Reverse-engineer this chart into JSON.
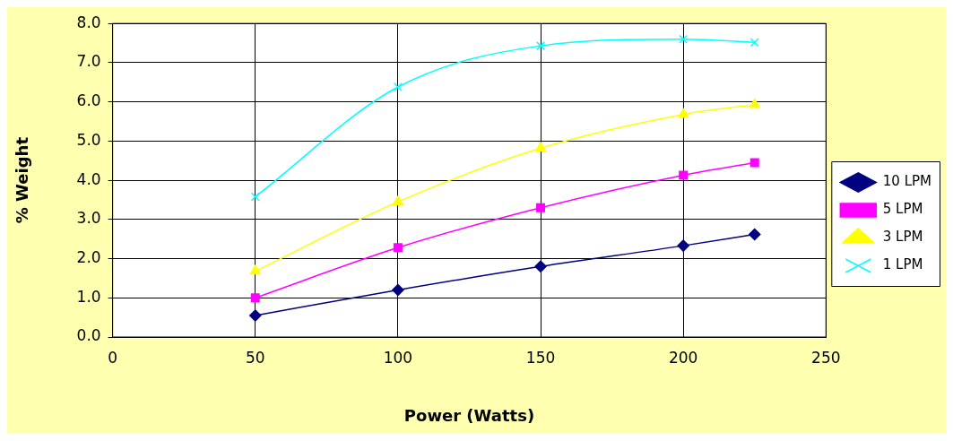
{
  "chart_data": {
    "type": "line",
    "xlabel": "Power (Watts)",
    "ylabel": "% Weight",
    "x": [
      50,
      100,
      150,
      200,
      225
    ],
    "series": [
      {
        "name": "10 LPM",
        "color": "#000080",
        "marker": "diamond",
        "values": [
          0.55,
          1.2,
          1.8,
          2.33,
          2.62
        ]
      },
      {
        "name": "5 LPM",
        "color": "#ff00ff",
        "marker": "square",
        "values": [
          1.0,
          2.28,
          3.3,
          4.13,
          4.45
        ]
      },
      {
        "name": "3 LPM",
        "color": "#ffff00",
        "marker": "triangle",
        "values": [
          1.68,
          3.45,
          4.82,
          5.68,
          5.93
        ]
      },
      {
        "name": "1 LPM",
        "color": "#00ffff",
        "marker": "cross",
        "values": [
          3.58,
          6.38,
          7.43,
          7.6,
          7.52
        ]
      }
    ],
    "xlim": [
      0,
      250
    ],
    "xticks": [
      0,
      50,
      100,
      150,
      200,
      250
    ],
    "ylim": [
      0,
      8
    ],
    "yticks": [
      {
        "value": 0,
        "label": "0.0"
      },
      {
        "value": 1,
        "label": "1.0"
      },
      {
        "value": 2,
        "label": "2.0"
      },
      {
        "value": 3,
        "label": "3.0"
      },
      {
        "value": 4,
        "label": "4.0"
      },
      {
        "value": 5,
        "label": "5.0"
      },
      {
        "value": 6,
        "label": "6.0"
      },
      {
        "value": 7,
        "label": "7.0"
      },
      {
        "value": 8,
        "label": "8.0"
      }
    ],
    "grid": true,
    "legend": "right"
  }
}
